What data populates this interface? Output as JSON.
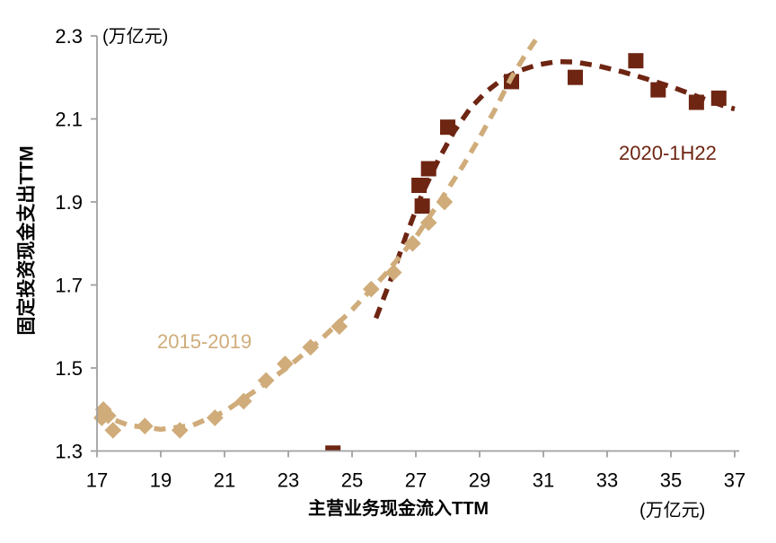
{
  "chart_data": {
    "type": "scatter",
    "title": "",
    "x_axis": {
      "label": "主营业务现金流入TTM",
      "unit": "(万亿元)",
      "min": 17,
      "max": 37,
      "ticks": [
        17,
        19,
        21,
        23,
        25,
        27,
        29,
        31,
        33,
        35,
        37
      ]
    },
    "y_axis": {
      "label": "固定投资现金支出TTM",
      "unit": "(万亿元)",
      "min": 1.3,
      "max": 2.3,
      "ticks": [
        1.3,
        1.5,
        1.7,
        1.9,
        2.1,
        2.3
      ]
    },
    "axis_color": "#A0A0A0",
    "series": [
      {
        "name": "2015-2019",
        "color": "#CFAC7A",
        "marker": "diamond",
        "points": [
          [
            17.15,
            1.38
          ],
          [
            17.2,
            1.4
          ],
          [
            17.35,
            1.385
          ],
          [
            17.5,
            1.35
          ],
          [
            18.5,
            1.36
          ],
          [
            19.6,
            1.35
          ],
          [
            20.7,
            1.38
          ],
          [
            21.6,
            1.42
          ],
          [
            22.3,
            1.47
          ],
          [
            22.9,
            1.51
          ],
          [
            23.7,
            1.55
          ],
          [
            24.6,
            1.6
          ],
          [
            25.6,
            1.69
          ],
          [
            26.3,
            1.73
          ],
          [
            26.9,
            1.8
          ],
          [
            27.4,
            1.85
          ],
          [
            27.9,
            1.9
          ]
        ],
        "trend": [
          [
            17.0,
            1.39
          ],
          [
            18.0,
            1.362
          ],
          [
            19.0,
            1.352
          ],
          [
            20.0,
            1.362
          ],
          [
            21.0,
            1.395
          ],
          [
            22.0,
            1.447
          ],
          [
            23.0,
            1.503
          ],
          [
            24.0,
            1.567
          ],
          [
            25.0,
            1.64
          ],
          [
            26.0,
            1.722
          ],
          [
            27.0,
            1.815
          ],
          [
            28.0,
            1.93
          ],
          [
            28.5,
            1.99
          ],
          [
            29.0,
            2.055
          ],
          [
            29.5,
            2.125
          ],
          [
            30.0,
            2.2
          ],
          [
            30.4,
            2.25
          ],
          [
            30.8,
            2.295
          ]
        ]
      },
      {
        "name": "2020-1H22",
        "color": "#6E2512",
        "marker": "square",
        "points": [
          [
            24.4,
            1.295
          ],
          [
            27.2,
            1.89
          ],
          [
            27.1,
            1.94
          ],
          [
            27.4,
            1.98
          ],
          [
            28.0,
            2.08
          ],
          [
            30.0,
            2.19
          ],
          [
            32.0,
            2.2
          ],
          [
            33.9,
            2.24
          ],
          [
            34.6,
            2.17
          ],
          [
            35.8,
            2.14
          ],
          [
            36.5,
            2.15
          ]
        ],
        "trend": [
          [
            25.75,
            1.62
          ],
          [
            26.2,
            1.71
          ],
          [
            26.7,
            1.82
          ],
          [
            27.2,
            1.92
          ],
          [
            27.7,
            2.0
          ],
          [
            28.2,
            2.07
          ],
          [
            28.7,
            2.125
          ],
          [
            29.2,
            2.165
          ],
          [
            29.7,
            2.195
          ],
          [
            30.2,
            2.215
          ],
          [
            30.8,
            2.23
          ],
          [
            31.4,
            2.238
          ],
          [
            32.0,
            2.237
          ],
          [
            32.7,
            2.228
          ],
          [
            33.5,
            2.213
          ],
          [
            34.3,
            2.195
          ],
          [
            35.1,
            2.175
          ],
          [
            35.9,
            2.152
          ],
          [
            36.7,
            2.13
          ],
          [
            37.0,
            2.124
          ]
        ]
      }
    ]
  }
}
